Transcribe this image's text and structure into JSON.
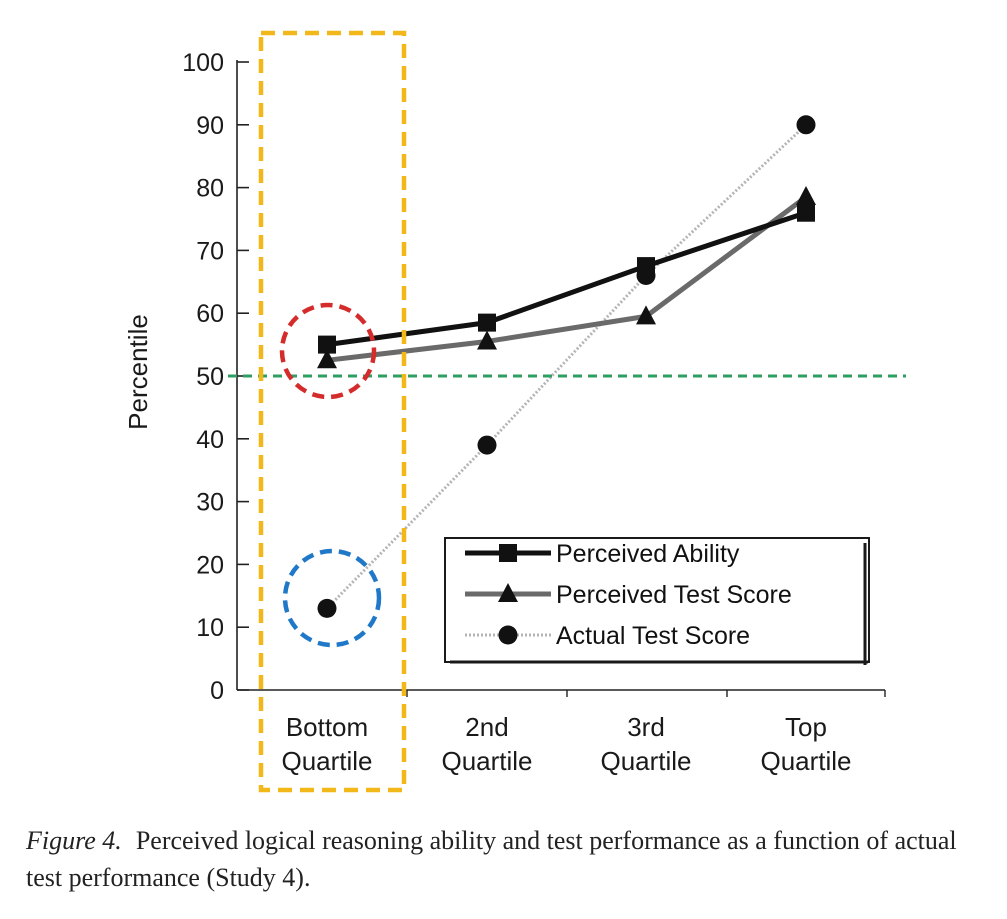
{
  "chart_data": {
    "type": "line",
    "title": "",
    "xlabel": "",
    "ylabel": "Percentile",
    "ylim": [
      0,
      100
    ],
    "yticks": [
      "0",
      "10",
      "20",
      "30",
      "40",
      "50",
      "60",
      "70",
      "80",
      "90",
      "100"
    ],
    "categories": [
      [
        "Bottom",
        "Quartile"
      ],
      [
        "2nd",
        "Quartile"
      ],
      [
        "3rd",
        "Quartile"
      ],
      [
        "Top",
        "Quartile"
      ]
    ],
    "series": [
      {
        "name": "Perceived Ability",
        "values": [
          55,
          58.5,
          67.5,
          76
        ],
        "marker": "square",
        "color": "#111111"
      },
      {
        "name": "Perceived Test Score",
        "values": [
          52.5,
          55.5,
          59.5,
          78.5
        ],
        "marker": "triangle",
        "color": "#6a6a6a"
      },
      {
        "name": "Actual Test Score",
        "values": [
          13,
          39,
          66,
          90
        ],
        "marker": "circle",
        "color": "#b5b5b5"
      }
    ],
    "legend_position": "bottom-right",
    "annotations": {
      "reference_line": {
        "value": 50,
        "color": "#2e9e62"
      },
      "highlight_box_color": "#f2b718",
      "circle_perceived_color": "#d42b2b",
      "circle_actual_color": "#1f78c8"
    }
  },
  "caption": {
    "label": "Figure 4.",
    "text": "Perceived logical reasoning ability and test performance as a function of actual test performance (Study 4)."
  }
}
